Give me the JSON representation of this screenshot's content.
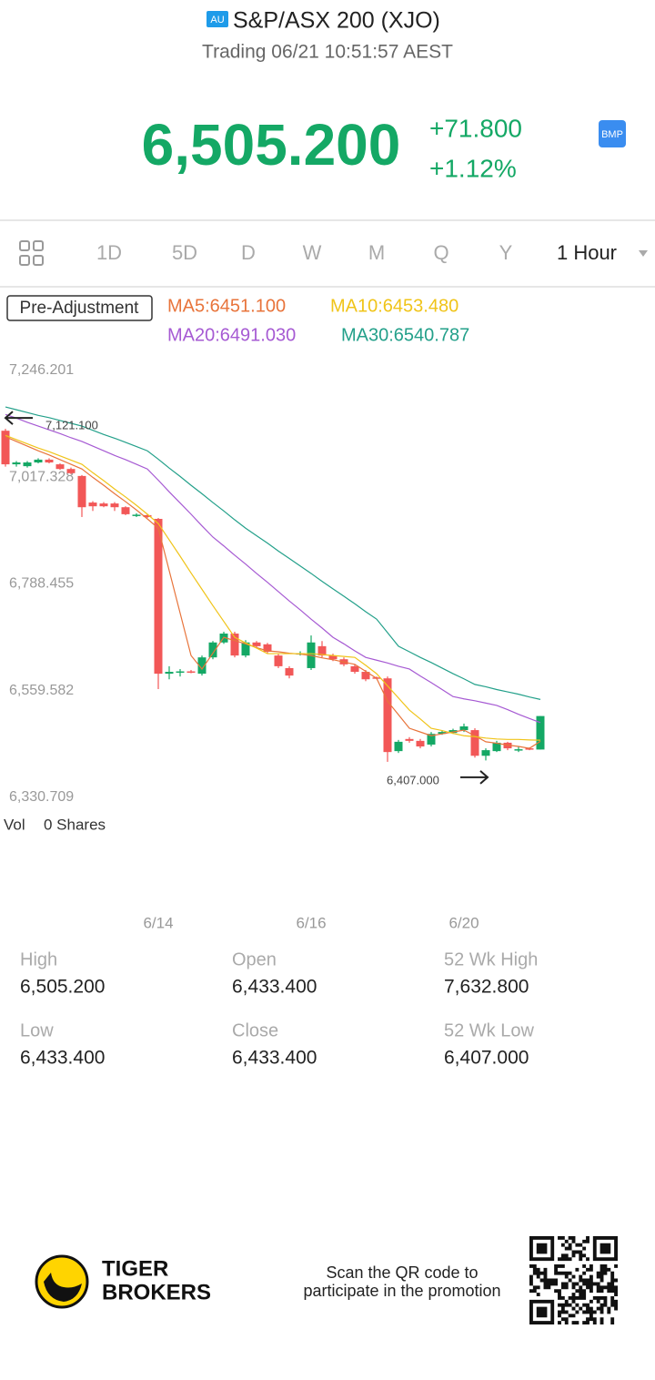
{
  "header": {
    "badge": "AU",
    "title": "S&P/ASX 200 (XJO)",
    "status": "Trading 06/21 10:51:57 AEST"
  },
  "quote": {
    "price": "6,505.200",
    "change": "+71.800",
    "change_pct": "+1.12%",
    "badge": "BMP"
  },
  "tabs": [
    "1D",
    "5D",
    "D",
    "W",
    "M",
    "Q",
    "Y",
    "1 Hour"
  ],
  "chart_data": {
    "type": "candlestick",
    "adjustment": "Pre-Adjustment",
    "categories": [
      null,
      null,
      null,
      null,
      null,
      null,
      null,
      null,
      null,
      null,
      null,
      null,
      null,
      null,
      "6/14",
      null,
      null,
      null,
      null,
      null,
      null,
      null,
      null,
      null,
      null,
      null,
      null,
      null,
      "6/16",
      null,
      null,
      null,
      null,
      null,
      null,
      null,
      null,
      null,
      null,
      null,
      null,
      null,
      "6/20",
      null,
      null,
      null,
      null,
      null,
      null,
      null
    ],
    "open": [
      7117,
      7045,
      7041,
      7049,
      7055,
      7045,
      7035,
      7020,
      6963,
      6961,
      6961,
      6953,
      6936,
      6936,
      6928,
      6596,
      6600,
      6601,
      6596,
      6631,
      6663,
      6682,
      6635,
      6663,
      6659,
      6635,
      6608,
      6639,
      6608,
      6655,
      6635,
      6627,
      6612,
      6600,
      6588,
      6586,
      6430,
      6456,
      6452,
      6444,
      6467,
      6469,
      6475,
      6475,
      6420,
      6430,
      6448,
      6433,
      6436,
      6433.4
    ],
    "high": [
      7121.1,
      7052,
      7052,
      7058,
      7058,
      7047,
      7038,
      7022,
      6966,
      6964,
      6964,
      6955,
      6940,
      6938,
      6930,
      6612,
      6606,
      6604,
      6635,
      6666,
      6686,
      6686,
      6668,
      6666,
      6662,
      6639,
      6612,
      6644,
      6678,
      6666,
      6639,
      6631,
      6616,
      6604,
      6590,
      6590,
      6454,
      6460,
      6456,
      6471,
      6475,
      6478,
      6489,
      6479,
      6436,
      6452,
      6450,
      6440,
      6438,
      6505.2
    ],
    "low": [
      7040,
      7040,
      7038,
      7047,
      7047,
      7033,
      7024,
      6932,
      6945,
      6953,
      6945,
      6936,
      6932,
      6930,
      6563,
      6584,
      6590,
      6597,
      6592,
      6627,
      6660,
      6631,
      6631,
      6651,
      6639,
      6608,
      6586,
      6635,
      6604,
      6631,
      6623,
      6612,
      6596,
      6580,
      6584,
      6407,
      6426,
      6448,
      6436,
      6440,
      6465,
      6467,
      6471,
      6416,
      6410,
      6428,
      6432,
      6428,
      6432,
      6433.4
    ],
    "close": [
      7045,
      7049,
      7049,
      7055,
      7049,
      7035,
      7026,
      6953,
      6955,
      6955,
      6953,
      6938,
      6937,
      6932,
      6596,
      6600,
      6601,
      6600,
      6631,
      6663,
      6682,
      6635,
      6663,
      6655,
      6643,
      6612,
      6592,
      6640,
      6663,
      6635,
      6627,
      6616,
      6600,
      6584,
      6586,
      6428,
      6450,
      6452,
      6440,
      6467,
      6471,
      6475,
      6483,
      6420,
      6432,
      6448,
      6436,
      6434,
      6435,
      6505.2
    ],
    "up_color": "#14a865",
    "down_color": "#f25757",
    "series": [
      {
        "name": "MA5:6451.100",
        "color": "#e8743b",
        "values": [
          7104,
          7094,
          7084,
          7074,
          7065,
          7055,
          7045,
          7035,
          7017,
          7000,
          6982,
          6965,
          6947,
          6928,
          6908,
          6817,
          6726,
          6635,
          6606,
          6640,
          6674,
          6667,
          6660,
          6652,
          6645,
          6643,
          6640,
          6638,
          6635,
          6630,
          6626,
          6621,
          6616,
          6601,
          6586,
          6537,
          6508,
          6479,
          6471,
          6463,
          6467,
          6471,
          6475,
          6463,
          6450,
          6447,
          6443,
          6440,
          6436,
          6451.1
        ]
      },
      {
        "name": "MA10:6453.480",
        "color": "#f0c419",
        "values": [
          7107,
          7098,
          7089,
          7080,
          7072,
          7063,
          7054,
          7045,
          7027,
          7010,
          6992,
          6975,
          6957,
          6938,
          6918,
          6883,
          6848,
          6812,
          6777,
          6742,
          6708,
          6674,
          6662,
          6651,
          6639,
          6639,
          6639,
          6639,
          6639,
          6637,
          6635,
          6633,
          6631,
          6614,
          6596,
          6570,
          6544,
          6518,
          6499,
          6479,
          6474,
          6468,
          6463,
          6461,
          6458,
          6456,
          6455,
          6455,
          6454,
          6453.48
        ]
      },
      {
        "name": "MA20:6491.030",
        "color": "#a65ad3",
        "values": [
          7152,
          7144,
          7135,
          7127,
          7119,
          7111,
          7102,
          7094,
          7084,
          7074,
          7064,
          7055,
          7045,
          7035,
          7011,
          6986,
          6962,
          6938,
          6913,
          6889,
          6870,
          6850,
          6831,
          6811,
          6792,
          6772,
          6752,
          6733,
          6713,
          6694,
          6674,
          6660,
          6645,
          6631,
          6625,
          6619,
          6612,
          6606,
          6591,
          6577,
          6562,
          6547,
          6542,
          6538,
          6533,
          6528,
          6519,
          6509,
          6500,
          6491.03
        ]
      },
      {
        "name": "MA30:6540.787",
        "color": "#23a08a",
        "values": [
          7168,
          7162,
          7156,
          7150,
          7145,
          7139,
          7133,
          7127,
          7118,
          7109,
          7101,
          7092,
          7083,
          7074,
          7056,
          7037,
          7019,
          7000,
          6982,
          6963,
          6945,
          6926,
          6908,
          6892,
          6876,
          6859,
          6843,
          6827,
          6811,
          6794,
          6778,
          6762,
          6746,
          6729,
          6713,
          6684,
          6655,
          6643,
          6631,
          6620,
          6608,
          6596,
          6585,
          6573,
          6568,
          6562,
          6557,
          6552,
          6546,
          6540.787
        ]
      }
    ],
    "ylim": [
      6330.709,
      7246.201
    ],
    "yticks": [
      {
        "value": 6330.709,
        "label": "6,330.709"
      },
      {
        "value": 6559.582,
        "label": "6,559.582"
      },
      {
        "value": 6788.455,
        "label": "6,788.455"
      },
      {
        "value": 7017.328,
        "label": "7,017.328"
      },
      {
        "value": 7246.201,
        "label": "7,246.201"
      }
    ],
    "annotations": [
      {
        "value": 7121.1,
        "label": "7,121.100"
      },
      {
        "value": 6407,
        "label": "6,407.000"
      }
    ],
    "volume_label": "Vol",
    "volume_text": "0 Shares"
  },
  "stats": [
    {
      "label": "High",
      "value": "6,505.200"
    },
    {
      "label": "Low",
      "value": "6,433.400"
    },
    {
      "label": "Open",
      "value": "6,433.400"
    },
    {
      "label": "Close",
      "value": "6,433.400"
    },
    {
      "label": "52 Wk High",
      "value": "7,632.800"
    },
    {
      "label": "52 Wk Low",
      "value": "6,407.000"
    }
  ],
  "footer": {
    "brand_line1": "TIGER",
    "brand_line2": "BROKERS",
    "promo_line1": "Scan the QR code to",
    "promo_line2": "participate in the promotion"
  }
}
